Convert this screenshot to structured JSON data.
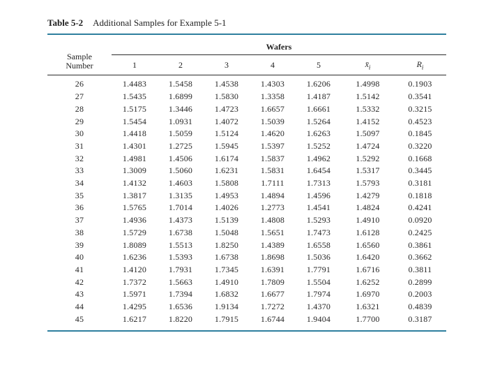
{
  "title": {
    "label": "Table 5-2",
    "text": "Additional Samples for Example 5-1"
  },
  "colors": {
    "rule_accent": "#2e7f9e",
    "rule_dark": "#2b2b2b",
    "text": "#262626",
    "background": "#ffffff"
  },
  "table": {
    "spanner": "Wafers",
    "stub_header": {
      "line1": "Sample",
      "line2": "Number"
    },
    "wafer_columns": [
      "1",
      "2",
      "3",
      "4",
      "5"
    ],
    "xbar_header": {
      "symbol": "x̄",
      "sub": "i"
    },
    "r_header": {
      "symbol": "R",
      "sub": "i"
    },
    "rows": [
      {
        "sample": "26",
        "wafers": [
          "1.4483",
          "1.5458",
          "1.4538",
          "1.4303",
          "1.6206"
        ],
        "xbar": "1.4998",
        "range": "0.1903"
      },
      {
        "sample": "27",
        "wafers": [
          "1.5435",
          "1.6899",
          "1.5830",
          "1.3358",
          "1.4187"
        ],
        "xbar": "1.5142",
        "range": "0.3541"
      },
      {
        "sample": "28",
        "wafers": [
          "1.5175",
          "1.3446",
          "1.4723",
          "1.6657",
          "1.6661"
        ],
        "xbar": "1.5332",
        "range": "0.3215"
      },
      {
        "sample": "29",
        "wafers": [
          "1.5454",
          "1.0931",
          "1.4072",
          "1.5039",
          "1.5264"
        ],
        "xbar": "1.4152",
        "range": "0.4523"
      },
      {
        "sample": "30",
        "wafers": [
          "1.4418",
          "1.5059",
          "1.5124",
          "1.4620",
          "1.6263"
        ],
        "xbar": "1.5097",
        "range": "0.1845"
      },
      {
        "sample": "31",
        "wafers": [
          "1.4301",
          "1.2725",
          "1.5945",
          "1.5397",
          "1.5252"
        ],
        "xbar": "1.4724",
        "range": "0.3220"
      },
      {
        "sample": "32",
        "wafers": [
          "1.4981",
          "1.4506",
          "1.6174",
          "1.5837",
          "1.4962"
        ],
        "xbar": "1.5292",
        "range": "0.1668"
      },
      {
        "sample": "33",
        "wafers": [
          "1.3009",
          "1.5060",
          "1.6231",
          "1.5831",
          "1.6454"
        ],
        "xbar": "1.5317",
        "range": "0.3445"
      },
      {
        "sample": "34",
        "wafers": [
          "1.4132",
          "1.4603",
          "1.5808",
          "1.7111",
          "1.7313"
        ],
        "xbar": "1.5793",
        "range": "0.3181"
      },
      {
        "sample": "35",
        "wafers": [
          "1.3817",
          "1.3135",
          "1.4953",
          "1.4894",
          "1.4596"
        ],
        "xbar": "1.4279",
        "range": "0.1818"
      },
      {
        "sample": "36",
        "wafers": [
          "1.5765",
          "1.7014",
          "1.4026",
          "1.2773",
          "1.4541"
        ],
        "xbar": "1.4824",
        "range": "0.4241"
      },
      {
        "sample": "37",
        "wafers": [
          "1.4936",
          "1.4373",
          "1.5139",
          "1.4808",
          "1.5293"
        ],
        "xbar": "1.4910",
        "range": "0.0920"
      },
      {
        "sample": "38",
        "wafers": [
          "1.5729",
          "1.6738",
          "1.5048",
          "1.5651",
          "1.7473"
        ],
        "xbar": "1.6128",
        "range": "0.2425"
      },
      {
        "sample": "39",
        "wafers": [
          "1.8089",
          "1.5513",
          "1.8250",
          "1.4389",
          "1.6558"
        ],
        "xbar": "1.6560",
        "range": "0.3861"
      },
      {
        "sample": "40",
        "wafers": [
          "1.6236",
          "1.5393",
          "1.6738",
          "1.8698",
          "1.5036"
        ],
        "xbar": "1.6420",
        "range": "0.3662"
      },
      {
        "sample": "41",
        "wafers": [
          "1.4120",
          "1.7931",
          "1.7345",
          "1.6391",
          "1.7791"
        ],
        "xbar": "1.6716",
        "range": "0.3811"
      },
      {
        "sample": "42",
        "wafers": [
          "1.7372",
          "1.5663",
          "1.4910",
          "1.7809",
          "1.5504"
        ],
        "xbar": "1.6252",
        "range": "0.2899"
      },
      {
        "sample": "43",
        "wafers": [
          "1.5971",
          "1.7394",
          "1.6832",
          "1.6677",
          "1.7974"
        ],
        "xbar": "1.6970",
        "range": "0.2003"
      },
      {
        "sample": "44",
        "wafers": [
          "1.4295",
          "1.6536",
          "1.9134",
          "1.7272",
          "1.4370"
        ],
        "xbar": "1.6321",
        "range": "0.4839"
      },
      {
        "sample": "45",
        "wafers": [
          "1.6217",
          "1.8220",
          "1.7915",
          "1.6744",
          "1.9404"
        ],
        "xbar": "1.7700",
        "range": "0.3187"
      }
    ]
  }
}
